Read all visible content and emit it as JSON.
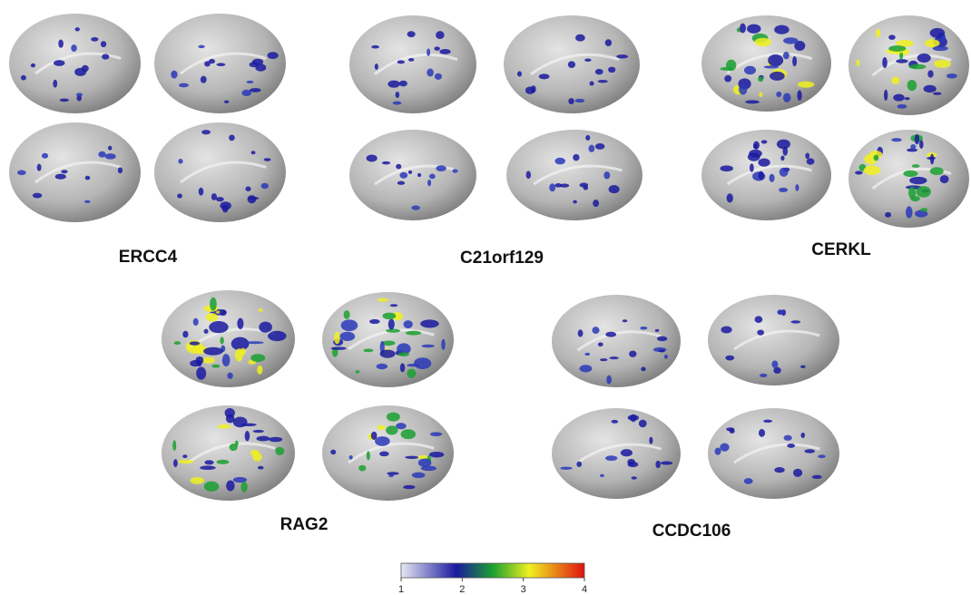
{
  "panels": [
    {
      "label": "ERCC4"
    },
    {
      "label": "C21orf129"
    },
    {
      "label": "CERKL"
    },
    {
      "label": "RAG2"
    },
    {
      "label": "CCDC106"
    }
  ],
  "colorbar": {
    "ticks": [
      1,
      2,
      3,
      4
    ]
  }
}
